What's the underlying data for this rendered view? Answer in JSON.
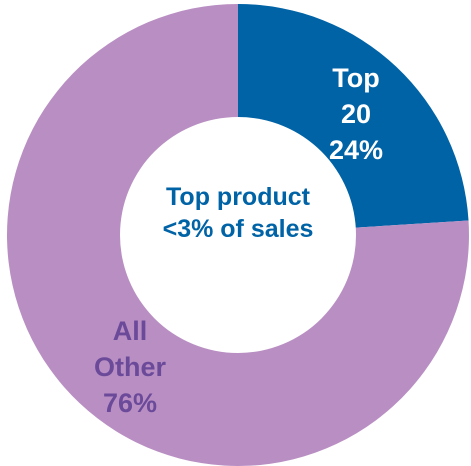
{
  "chart_data": {
    "type": "pie",
    "variant": "donut",
    "slices": [
      {
        "id": "top20",
        "label_lines": [
          "Top",
          "20",
          "24%"
        ],
        "value": 24,
        "color": "#0063A6",
        "label_color": "#FFFFFF"
      },
      {
        "id": "all_other",
        "label_lines": [
          "All",
          "Other",
          "76%"
        ],
        "value": 76,
        "color": "#B98FC3",
        "label_color": "#6B4A9A"
      }
    ],
    "center_text": {
      "line1": "Top product",
      "line2": "<3% of sales",
      "color": "#0063A6"
    }
  }
}
